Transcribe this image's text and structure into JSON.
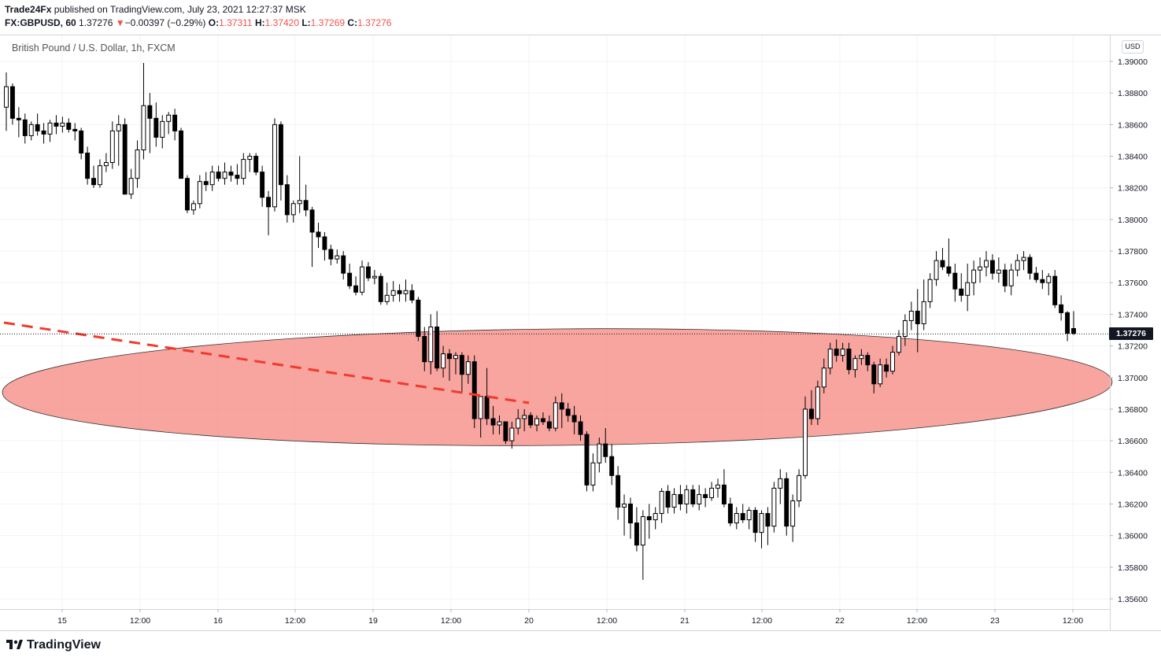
{
  "header": {
    "publisher": "Trade24Fx",
    "published_text": "published on TradingView.com, July 23, 2021 12:27:37 MSK",
    "symbol": "FX:GBPUSD, 60",
    "last": "1.37276",
    "change_arrow": "▼",
    "change": "−0.00397 (−0.29%)",
    "o_label": "O:",
    "o_value": "1.37311",
    "h_label": "H:",
    "h_value": "1.37420",
    "l_label": "L:",
    "l_value": "1.37269",
    "c_label": "C:",
    "c_value": "1.37276"
  },
  "legend": {
    "title": "British Pound / U.S. Dollar, 1h, FXCM"
  },
  "price_scale": {
    "currency": "USD",
    "last_price_label": "1.37276"
  },
  "footer": {
    "brand": "TradingView",
    "logo_icon": "tradingview-logo-icon"
  },
  "colors": {
    "bull_candle": "#ffffff",
    "bear_candle": "#000000",
    "ellipse_fill": "#f7948e",
    "trendline": "#f23a2c",
    "grid": "#f0f3fa",
    "text": "#131722",
    "change_red": "#ef5350"
  },
  "chart_data": {
    "type": "candlestick",
    "title": "British Pound / U.S. Dollar, 1h, FXCM",
    "timeframe": "1h",
    "y_axis": {
      "min": 1.3556,
      "max": 1.3904,
      "ticks": [
        "1.39000",
        "1.38800",
        "1.38600",
        "1.38400",
        "1.38200",
        "1.38000",
        "1.37800",
        "1.37600",
        "1.37400",
        "1.37200",
        "1.37000",
        "1.36800",
        "1.36600",
        "1.36400",
        "1.36200",
        "1.36000",
        "1.35800",
        "1.35600"
      ]
    },
    "x_axis": {
      "labels": [
        "15",
        "12:00",
        "16",
        "12:00",
        "19",
        "12:00",
        "20",
        "12:00",
        "21",
        "12:00",
        "22",
        "12:00",
        "23",
        "12:00"
      ]
    },
    "grid": true,
    "last_price": 1.37276,
    "candles": [
      [
        1.3871,
        1.3893,
        1.3856,
        1.3884
      ],
      [
        1.3884,
        1.3886,
        1.386,
        1.3864
      ],
      [
        1.3864,
        1.3871,
        1.3852,
        1.3863
      ],
      [
        1.3863,
        1.3867,
        1.3848,
        1.3853
      ],
      [
        1.3853,
        1.3862,
        1.385,
        1.386
      ],
      [
        1.386,
        1.3867,
        1.3853,
        1.3856
      ],
      [
        1.3856,
        1.3861,
        1.3848,
        1.3854
      ],
      [
        1.3854,
        1.3863,
        1.3849,
        1.3861
      ],
      [
        1.3861,
        1.3866,
        1.3854,
        1.3859
      ],
      [
        1.3859,
        1.3865,
        1.3855,
        1.3861
      ],
      [
        1.3861,
        1.3864,
        1.3855,
        1.3857
      ],
      [
        1.3857,
        1.3861,
        1.385,
        1.3856
      ],
      [
        1.3856,
        1.3858,
        1.3838,
        1.3842
      ],
      [
        1.3842,
        1.3846,
        1.3822,
        1.3826
      ],
      [
        1.3826,
        1.3834,
        1.382,
        1.3822
      ],
      [
        1.3822,
        1.3838,
        1.382,
        1.3834
      ],
      [
        1.3834,
        1.3842,
        1.383,
        1.3836
      ],
      [
        1.3836,
        1.3862,
        1.3832,
        1.3856
      ],
      [
        1.3856,
        1.3866,
        1.3834,
        1.386
      ],
      [
        1.386,
        1.3864,
        1.3816,
        1.3816
      ],
      [
        1.3816,
        1.3832,
        1.3813,
        1.3826
      ],
      [
        1.3826,
        1.385,
        1.382,
        1.3844
      ],
      [
        1.3844,
        1.3899,
        1.3838,
        1.3872
      ],
      [
        1.3872,
        1.388,
        1.3842,
        1.3864
      ],
      [
        1.3864,
        1.3874,
        1.3846,
        1.3852
      ],
      [
        1.3852,
        1.3866,
        1.3845,
        1.3862
      ],
      [
        1.3862,
        1.3868,
        1.3854,
        1.3866
      ],
      [
        1.3866,
        1.387,
        1.385,
        1.3856
      ],
      [
        1.3856,
        1.3858,
        1.3826,
        1.3826
      ],
      [
        1.3826,
        1.3828,
        1.3804,
        1.3806
      ],
      [
        1.3806,
        1.3812,
        1.3803,
        1.381
      ],
      [
        1.381,
        1.3828,
        1.3807,
        1.3824
      ],
      [
        1.3824,
        1.383,
        1.3818,
        1.3822
      ],
      [
        1.3822,
        1.3834,
        1.3818,
        1.383
      ],
      [
        1.383,
        1.3834,
        1.3824,
        1.3826
      ],
      [
        1.3826,
        1.3836,
        1.3822,
        1.383
      ],
      [
        1.383,
        1.3834,
        1.3824,
        1.3828
      ],
      [
        1.3828,
        1.3835,
        1.3822,
        1.3826
      ],
      [
        1.3826,
        1.3842,
        1.3822,
        1.3838
      ],
      [
        1.3838,
        1.3842,
        1.383,
        1.384
      ],
      [
        1.384,
        1.3842,
        1.3828,
        1.383
      ],
      [
        1.383,
        1.3834,
        1.3808,
        1.3814
      ],
      [
        1.3814,
        1.3818,
        1.379,
        1.3808
      ],
      [
        1.3808,
        1.3864,
        1.3805,
        1.386
      ],
      [
        1.386,
        1.3862,
        1.3812,
        1.3822
      ],
      [
        1.3822,
        1.3828,
        1.3798,
        1.3803
      ],
      [
        1.3803,
        1.3812,
        1.3798,
        1.381
      ],
      [
        1.381,
        1.384,
        1.3804,
        1.3812
      ],
      [
        1.3812,
        1.3822,
        1.3802,
        1.3806
      ],
      [
        1.3806,
        1.3808,
        1.377,
        1.3792
      ],
      [
        1.3792,
        1.3798,
        1.3782,
        1.3789
      ],
      [
        1.3789,
        1.3792,
        1.3774,
        1.3781
      ],
      [
        1.3781,
        1.3784,
        1.3771,
        1.3775
      ],
      [
        1.3775,
        1.3781,
        1.3772,
        1.3777
      ],
      [
        1.3777,
        1.378,
        1.3762,
        1.3766
      ],
      [
        1.3766,
        1.3772,
        1.3756,
        1.3758
      ],
      [
        1.3758,
        1.3764,
        1.3752,
        1.3754
      ],
      [
        1.3754,
        1.3774,
        1.3752,
        1.377
      ],
      [
        1.377,
        1.3773,
        1.3761,
        1.3763
      ],
      [
        1.3763,
        1.3768,
        1.3759,
        1.3764
      ],
      [
        1.3764,
        1.3766,
        1.3746,
        1.3748
      ],
      [
        1.3748,
        1.376,
        1.3746,
        1.3752
      ],
      [
        1.3752,
        1.3761,
        1.3748,
        1.3755
      ],
      [
        1.3755,
        1.3759,
        1.3748,
        1.3753
      ],
      [
        1.3753,
        1.3762,
        1.3748,
        1.3755
      ],
      [
        1.3755,
        1.3759,
        1.3747,
        1.3749
      ],
      [
        1.3749,
        1.3751,
        1.3723,
        1.3726
      ],
      [
        1.3726,
        1.3732,
        1.3704,
        1.371
      ],
      [
        1.371,
        1.374,
        1.3702,
        1.3732
      ],
      [
        1.3732,
        1.3742,
        1.3704,
        1.3706
      ],
      [
        1.3706,
        1.372,
        1.37,
        1.3715
      ],
      [
        1.3715,
        1.3718,
        1.3698,
        1.3712
      ],
      [
        1.3712,
        1.3716,
        1.3702,
        1.3714
      ],
      [
        1.3714,
        1.3716,
        1.369,
        1.3702
      ],
      [
        1.3702,
        1.3714,
        1.3696,
        1.371
      ],
      [
        1.371,
        1.3714,
        1.3668,
        1.3674
      ],
      [
        1.3674,
        1.3688,
        1.3662,
        1.3688
      ],
      [
        1.3688,
        1.3706,
        1.367,
        1.3674
      ],
      [
        1.3674,
        1.3682,
        1.3664,
        1.367
      ],
      [
        1.367,
        1.3676,
        1.3664,
        1.3672
      ],
      [
        1.3672,
        1.3672,
        1.3658,
        1.366
      ],
      [
        1.366,
        1.3672,
        1.3655,
        1.3668
      ],
      [
        1.3668,
        1.368,
        1.3664,
        1.3674
      ],
      [
        1.3674,
        1.368,
        1.3666,
        1.3676
      ],
      [
        1.3676,
        1.3678,
        1.3668,
        1.367
      ],
      [
        1.367,
        1.3676,
        1.3666,
        1.3674
      ],
      [
        1.3674,
        1.3678,
        1.367,
        1.3672
      ],
      [
        1.3672,
        1.3676,
        1.3666,
        1.3668
      ],
      [
        1.3668,
        1.3688,
        1.3666,
        1.3684
      ],
      [
        1.3684,
        1.369,
        1.3668,
        1.368
      ],
      [
        1.368,
        1.3684,
        1.3672,
        1.3676
      ],
      [
        1.3676,
        1.3682,
        1.3664,
        1.3672
      ],
      [
        1.3672,
        1.3676,
        1.366,
        1.3664
      ],
      [
        1.3664,
        1.3666,
        1.3628,
        1.3632
      ],
      [
        1.3632,
        1.3652,
        1.3628,
        1.3646
      ],
      [
        1.3646,
        1.3662,
        1.364,
        1.3658
      ],
      [
        1.3658,
        1.3668,
        1.3646,
        1.365
      ],
      [
        1.365,
        1.3658,
        1.3632,
        1.3638
      ],
      [
        1.3638,
        1.3644,
        1.361,
        1.3618
      ],
      [
        1.3618,
        1.3626,
        1.36,
        1.362
      ],
      [
        1.362,
        1.3624,
        1.3598,
        1.3608
      ],
      [
        1.3608,
        1.3618,
        1.359,
        1.3594
      ],
      [
        1.3594,
        1.3616,
        1.3572,
        1.3612
      ],
      [
        1.3612,
        1.362,
        1.3598,
        1.361
      ],
      [
        1.361,
        1.3618,
        1.3604,
        1.3614
      ],
      [
        1.3614,
        1.363,
        1.3608,
        1.3628
      ],
      [
        1.3628,
        1.3632,
        1.3614,
        1.3618
      ],
      [
        1.3618,
        1.363,
        1.3614,
        1.3626
      ],
      [
        1.3626,
        1.3632,
        1.3616,
        1.362
      ],
      [
        1.362,
        1.3632,
        1.3614,
        1.3629
      ],
      [
        1.3629,
        1.3632,
        1.3618,
        1.362
      ],
      [
        1.362,
        1.3632,
        1.3616,
        1.3626
      ],
      [
        1.3626,
        1.363,
        1.3618,
        1.3624
      ],
      [
        1.3624,
        1.3634,
        1.3622,
        1.363
      ],
      [
        1.363,
        1.3636,
        1.3624,
        1.3632
      ],
      [
        1.3632,
        1.3642,
        1.3618,
        1.362
      ],
      [
        1.362,
        1.3624,
        1.3606,
        1.3608
      ],
      [
        1.3608,
        1.3618,
        1.3604,
        1.3614
      ],
      [
        1.3614,
        1.362,
        1.3608,
        1.361
      ],
      [
        1.361,
        1.3618,
        1.3604,
        1.3616
      ],
      [
        1.3616,
        1.3618,
        1.3596,
        1.3602
      ],
      [
        1.3602,
        1.3616,
        1.3592,
        1.3614
      ],
      [
        1.3614,
        1.3618,
        1.3594,
        1.3606
      ],
      [
        1.3606,
        1.3634,
        1.3602,
        1.363
      ],
      [
        1.363,
        1.3642,
        1.362,
        1.3636
      ],
      [
        1.3636,
        1.364,
        1.36,
        1.3606
      ],
      [
        1.3606,
        1.3626,
        1.3596,
        1.3622
      ],
      [
        1.3622,
        1.3642,
        1.3618,
        1.3638
      ],
      [
        1.3638,
        1.3688,
        1.3636,
        1.368
      ],
      [
        1.368,
        1.3692,
        1.367,
        1.3674
      ],
      [
        1.3674,
        1.3698,
        1.367,
        1.3694
      ],
      [
        1.3694,
        1.3712,
        1.369,
        1.3706
      ],
      [
        1.3706,
        1.3722,
        1.3702,
        1.3718
      ],
      [
        1.3718,
        1.3724,
        1.371,
        1.3714
      ],
      [
        1.3714,
        1.3722,
        1.371,
        1.3718
      ],
      [
        1.3718,
        1.3722,
        1.3702,
        1.3705
      ],
      [
        1.3705,
        1.3714,
        1.37,
        1.3712
      ],
      [
        1.3712,
        1.3718,
        1.3708,
        1.3714
      ],
      [
        1.3714,
        1.3716,
        1.3704,
        1.3708
      ],
      [
        1.3708,
        1.371,
        1.369,
        1.3696
      ],
      [
        1.3696,
        1.3712,
        1.3694,
        1.3708
      ],
      [
        1.3708,
        1.3712,
        1.37,
        1.3704
      ],
      [
        1.3704,
        1.372,
        1.3702,
        1.3716
      ],
      [
        1.3716,
        1.373,
        1.3714,
        1.3726
      ],
      [
        1.3726,
        1.374,
        1.372,
        1.3736
      ],
      [
        1.3736,
        1.3748,
        1.373,
        1.3742
      ],
      [
        1.3742,
        1.3756,
        1.3716,
        1.3734
      ],
      [
        1.3734,
        1.3762,
        1.373,
        1.3748
      ],
      [
        1.3748,
        1.3766,
        1.3744,
        1.3762
      ],
      [
        1.3762,
        1.378,
        1.3758,
        1.3774
      ],
      [
        1.3774,
        1.3782,
        1.3768,
        1.377
      ],
      [
        1.377,
        1.3788,
        1.3764,
        1.3766
      ],
      [
        1.3766,
        1.3772,
        1.3748,
        1.3756
      ],
      [
        1.3756,
        1.3766,
        1.3748,
        1.3752
      ],
      [
        1.3752,
        1.3772,
        1.3742,
        1.376
      ],
      [
        1.376,
        1.3774,
        1.3752,
        1.3768
      ],
      [
        1.3768,
        1.3776,
        1.376,
        1.377
      ],
      [
        1.377,
        1.378,
        1.3764,
        1.3774
      ],
      [
        1.3774,
        1.3778,
        1.3762,
        1.3766
      ],
      [
        1.3766,
        1.3776,
        1.376,
        1.3768
      ],
      [
        1.3768,
        1.3772,
        1.3754,
        1.3758
      ],
      [
        1.3758,
        1.3772,
        1.3752,
        1.3768
      ],
      [
        1.3768,
        1.3778,
        1.3764,
        1.3774
      ],
      [
        1.3774,
        1.378,
        1.3768,
        1.3776
      ],
      [
        1.3776,
        1.3778,
        1.3762,
        1.3766
      ],
      [
        1.3766,
        1.377,
        1.376,
        1.3762
      ],
      [
        1.3762,
        1.3768,
        1.3756,
        1.376
      ],
      [
        1.376,
        1.3766,
        1.3752,
        1.3764
      ],
      [
        1.3764,
        1.3768,
        1.3744,
        1.3746
      ],
      [
        1.3746,
        1.3752,
        1.3736,
        1.3741
      ],
      [
        1.3741,
        1.3742,
        1.3723,
        1.3728
      ],
      [
        1.3731,
        1.3742,
        1.3727,
        1.3728
      ]
    ]
  }
}
